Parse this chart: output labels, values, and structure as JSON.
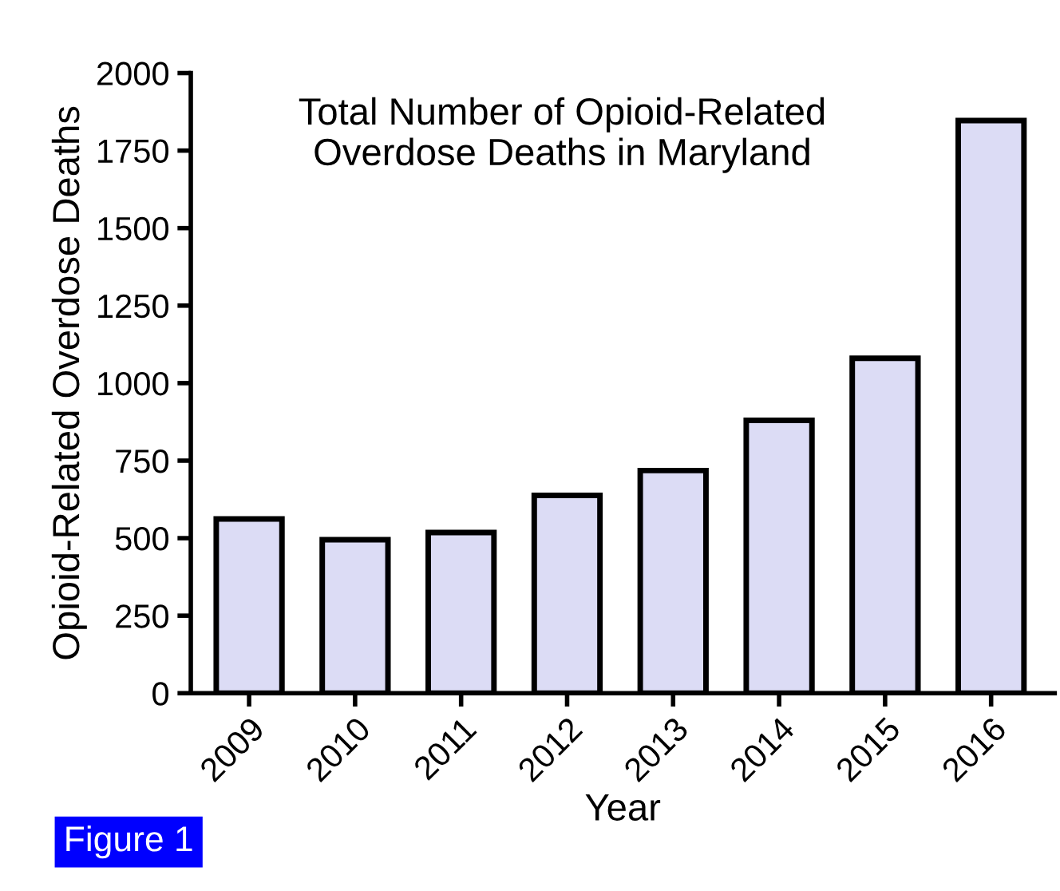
{
  "chart_data": {
    "type": "bar",
    "title": "Total Number of Opioid-Related\nOverdose Deaths in Maryland",
    "xlabel": "Year",
    "ylabel": "Opioid-Related Overdose Deaths",
    "categories": [
      "2009",
      "2010",
      "2011",
      "2012",
      "2013",
      "2014",
      "2015",
      "2016"
    ],
    "values": [
      562,
      495,
      518,
      638,
      718,
      880,
      1080,
      1847
    ],
    "color": "#dcdcf5",
    "ylim": [
      0,
      2000
    ],
    "yticks": [
      0,
      250,
      500,
      750,
      1000,
      1250,
      1500,
      1750,
      2000
    ],
    "grid": false,
    "annotations": [
      "Figure 1"
    ]
  }
}
